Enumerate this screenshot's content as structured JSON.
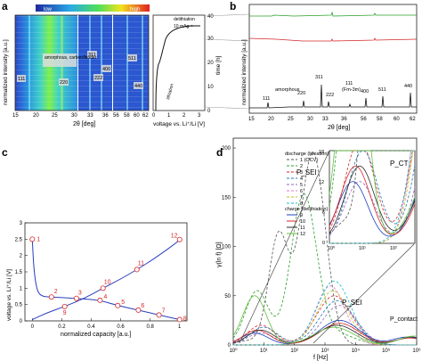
{
  "panels": {
    "a": {
      "letter": "a",
      "colorbar": {
        "low": "low",
        "high": "high"
      },
      "ylabel": "normalized intensity [a.u.]",
      "xlabel": "2θ [deg]",
      "xticks": [
        "15",
        "20",
        "25",
        "30",
        "33",
        "36",
        "56",
        "58",
        "60",
        "62",
        "64"
      ],
      "peaks": [
        "111",
        "220",
        "311",
        "222",
        "400",
        "511",
        "440"
      ],
      "annotation": "amorphous, carbon/binder",
      "time_axis": {
        "label": "time [h]",
        "ticks": [
          "0",
          "10",
          "20",
          "30",
          "40"
        ],
        "xlabel": "voltage vs. Li⁺/Li [V]",
        "xticks": [
          "0",
          "1",
          "2",
          "3"
        ],
        "delithiation": "delithiation",
        "rate": "10 mAg⁻¹",
        "lithiation": "lithiation"
      }
    },
    "b": {
      "letter": "b",
      "ylabel": "normalized intensity [a.u.]",
      "xlabel": "2θ [deg]",
      "xticks": [
        "15",
        "20",
        "25",
        "30",
        "33",
        "36",
        "56",
        "58",
        "60",
        "62"
      ],
      "labels": {
        "amorphous": "amorphous",
        "phase": "(Fm-3m)"
      },
      "peaks": [
        "111",
        "220",
        "311",
        "222",
        "111",
        "400",
        "511",
        "440"
      ],
      "series_colors": {
        "top": "#2aa02a",
        "mid": "#d62728",
        "bottom": "#111111"
      }
    },
    "c": {
      "letter": "c",
      "ylabel": "voltage vs. Li⁺/Li [V]",
      "xlabel": "normalized capacity [a.u.]",
      "xticks": [
        "0",
        "0.2",
        "0.4",
        "0.6",
        "0.8",
        "1"
      ],
      "yticks": [
        "0",
        "0.5",
        "1",
        "1.5",
        "2",
        "2.5",
        "3"
      ]
    },
    "d": {
      "letter": "d",
      "ylabel": "γ(ln f) [Ω]",
      "xlabel": "f [Hz]",
      "xticks": [
        "10⁰",
        "10¹",
        "10²",
        "10³",
        "10⁴",
        "10⁵",
        "10⁶"
      ],
      "yticks": [
        "0",
        "50",
        "100",
        "150",
        "200"
      ],
      "labels": {
        "psei_top": "P_SEI",
        "psei_bottom": "P_SEI",
        "pcontact": "P_contact",
        "pct": "P_CT"
      },
      "legend": {
        "discharge_title": "discharge (lithiation)",
        "charge_title": "charge (delithiation)"
      },
      "inset": {
        "yticks": [
          "0",
          "6",
          "12",
          "18"
        ],
        "xticks": [
          "10⁰",
          "10¹",
          "10²"
        ]
      }
    }
  },
  "chart_data": [
    {
      "id": "c-voltage-profile",
      "type": "scatter",
      "xlabel": "normalized capacity [a.u.]",
      "ylabel": "voltage vs. Li⁺/Li [V]",
      "xlim": [
        -0.05,
        1.05
      ],
      "ylim": [
        0,
        3
      ],
      "points": [
        {
          "label": "1",
          "x": 0.0,
          "y": 2.5
        },
        {
          "label": "2",
          "x": 0.13,
          "y": 0.73
        },
        {
          "label": "3",
          "x": 0.3,
          "y": 0.69
        },
        {
          "label": "4",
          "x": 0.46,
          "y": 0.63
        },
        {
          "label": "5",
          "x": 0.58,
          "y": 0.47
        },
        {
          "label": "6",
          "x": 0.72,
          "y": 0.33
        },
        {
          "label": "7",
          "x": 0.86,
          "y": 0.18
        },
        {
          "label": "8",
          "x": 1.0,
          "y": 0.04
        },
        {
          "label": "9",
          "x": 0.22,
          "y": 0.44
        },
        {
          "label": "10",
          "x": 0.48,
          "y": 1.0
        },
        {
          "label": "11",
          "x": 0.71,
          "y": 1.57
        },
        {
          "label": "12",
          "x": 1.0,
          "y": 2.49
        }
      ],
      "discharge_curve": [
        [
          0.0,
          2.5
        ],
        [
          0.01,
          1.6
        ],
        [
          0.03,
          0.95
        ],
        [
          0.06,
          0.75
        ],
        [
          0.13,
          0.73
        ],
        [
          0.3,
          0.69
        ],
        [
          0.46,
          0.63
        ],
        [
          0.58,
          0.47
        ],
        [
          0.72,
          0.33
        ],
        [
          0.86,
          0.18
        ],
        [
          1.0,
          0.04
        ]
      ],
      "charge_curve": [
        [
          0.0,
          0.04
        ],
        [
          0.1,
          0.25
        ],
        [
          0.22,
          0.44
        ],
        [
          0.35,
          0.68
        ],
        [
          0.48,
          1.0
        ],
        [
          0.6,
          1.28
        ],
        [
          0.71,
          1.57
        ],
        [
          0.82,
          1.88
        ],
        [
          0.92,
          2.2
        ],
        [
          0.98,
          2.4
        ],
        [
          1.0,
          2.49
        ]
      ]
    },
    {
      "id": "d-drt",
      "type": "line",
      "xscale": "log",
      "xlim": [
        1,
        1000000
      ],
      "ylim": [
        0,
        210
      ],
      "xlabel": "f [Hz]",
      "ylabel": "γ(ln f) [Ω]",
      "series": [
        {
          "name": "1 (OCV)",
          "color": "#555555",
          "dash": "3,2",
          "peaks": [
            [
              3,
              4,
              0.12
            ],
            [
              30,
              110,
              0.1
            ],
            [
              400,
              195,
              0.13
            ]
          ]
        },
        {
          "name": "2",
          "color": "#2ca02c",
          "dash": "3,2",
          "peaks": [
            [
              6,
              55,
              0.12
            ],
            [
              200,
              150,
              0.13
            ],
            [
              2000,
              12,
              0.2
            ]
          ]
        },
        {
          "name": "3",
          "color": "#d62728",
          "dash": "3,2",
          "peaks": [
            [
              8,
              20,
              0.14
            ],
            [
              2000,
              50,
              0.18
            ]
          ]
        },
        {
          "name": "4",
          "color": "#1f77b4",
          "dash": "3,2",
          "peaks": [
            [
              10,
              18,
              0.14
            ],
            [
              2500,
              45,
              0.18
            ]
          ]
        },
        {
          "name": "5",
          "color": "#9467bd",
          "dash": "3,2",
          "peaks": [
            [
              8,
              12,
              0.14
            ],
            [
              3000,
              40,
              0.18
            ]
          ]
        },
        {
          "name": "6",
          "color": "#e377c2",
          "dash": "3,2",
          "peaks": [
            [
              1500,
              60,
              0.15
            ]
          ]
        },
        {
          "name": "7",
          "color": "#bcbd22",
          "dash": "3,2",
          "peaks": [
            [
              1800,
              55,
              0.16
            ]
          ]
        },
        {
          "name": "8",
          "color": "#17becf",
          "dash": "3,2",
          "peaks": [
            [
              2000,
              65,
              0.17
            ]
          ]
        },
        {
          "name": "9",
          "color": "#1f3fbf",
          "dash": "",
          "peaks": [
            [
              5,
              12,
              0.14
            ],
            [
              3000,
              25,
              0.2
            ],
            [
              500000,
              8,
              0.15
            ]
          ]
        },
        {
          "name": "10",
          "color": "#d62728",
          "dash": "",
          "peaks": [
            [
              6,
              15,
              0.14
            ],
            [
              3000,
              22,
              0.2
            ],
            [
              600000,
              7,
              0.15
            ]
          ]
        },
        {
          "name": "11",
          "color": "#2c2c2c",
          "dash": "",
          "peaks": [
            [
              8,
              15,
              0.14
            ],
            [
              2500,
              20,
              0.2
            ],
            [
              700000,
              8,
              0.15
            ]
          ]
        },
        {
          "name": "12",
          "color": "#5fbf3f",
          "dash": "",
          "peaks": [
            [
              5,
              50,
              0.12
            ],
            [
              2000,
              18,
              0.2
            ],
            [
              800000,
              9,
              0.15
            ]
          ]
        }
      ]
    }
  ]
}
